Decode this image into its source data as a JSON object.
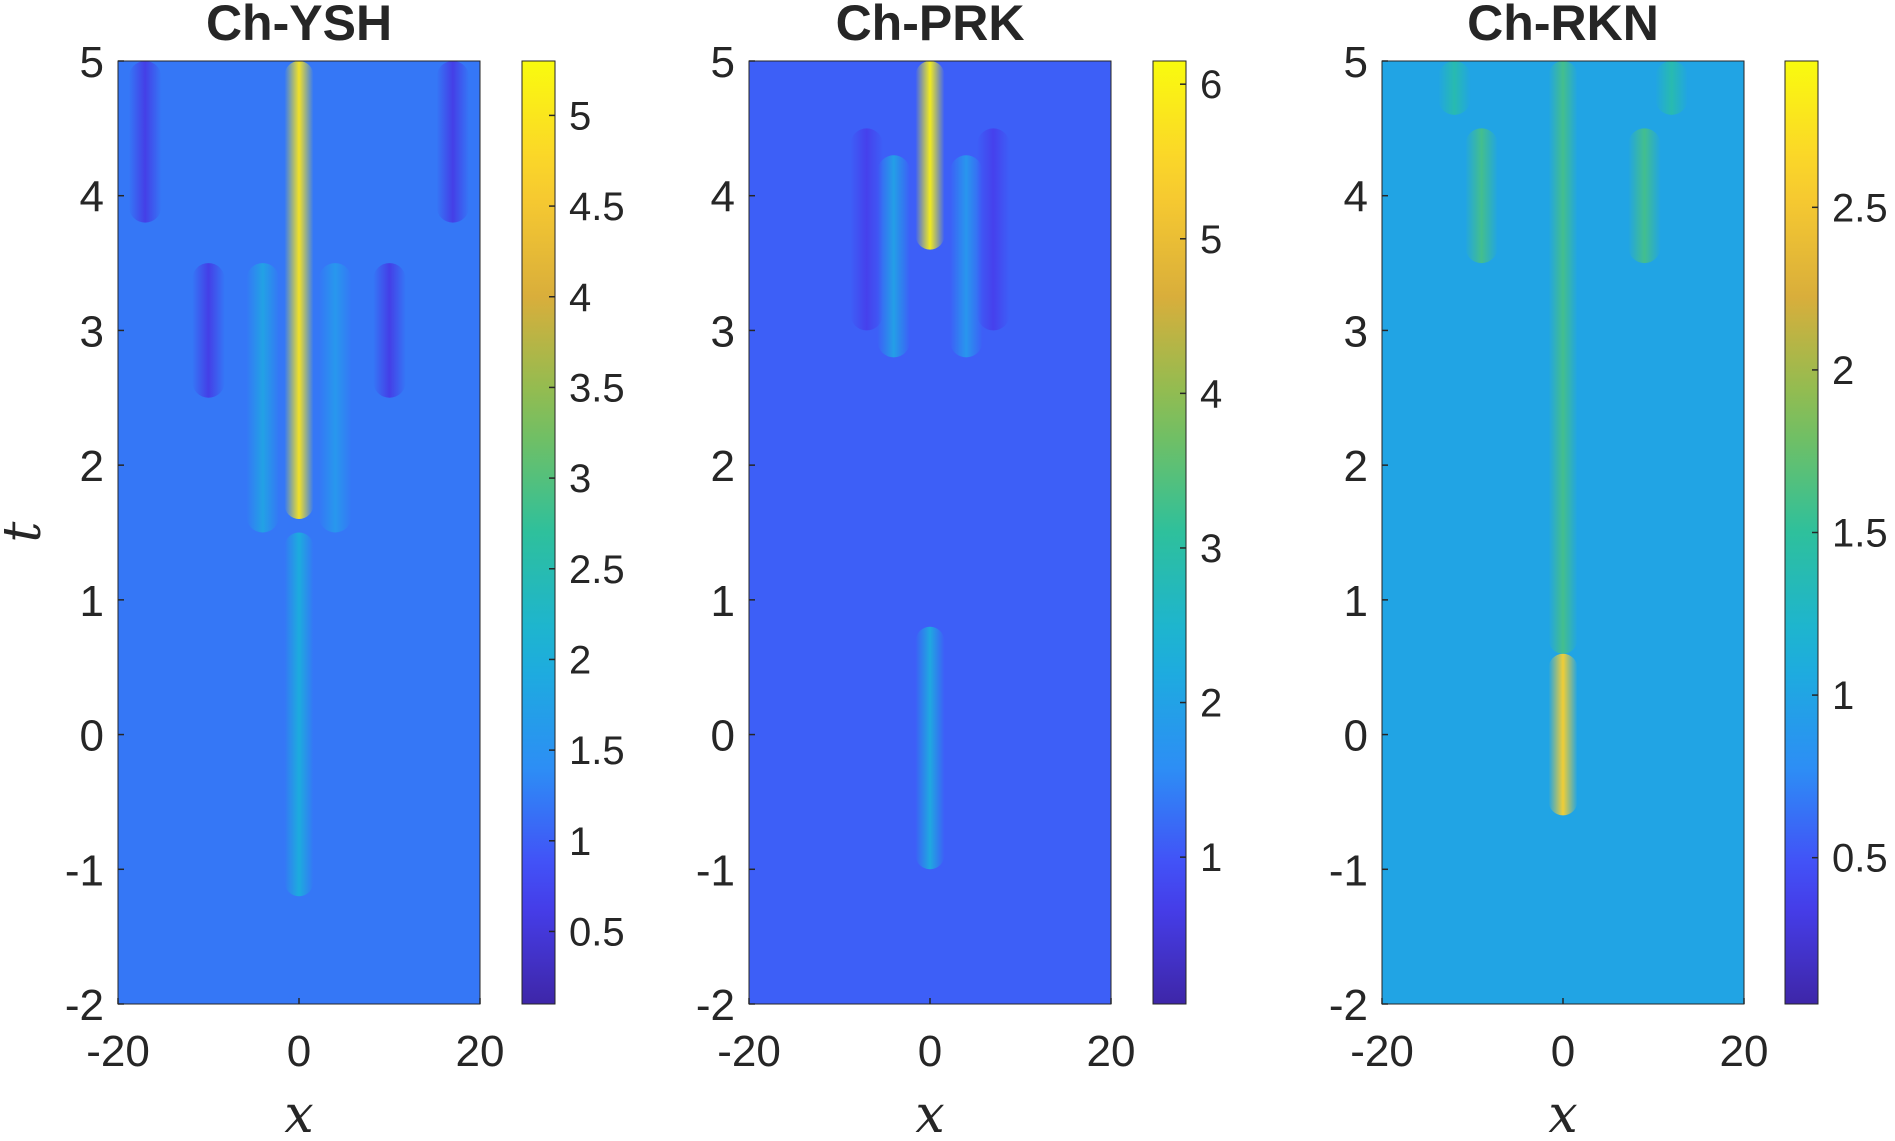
{
  "colormap": [
    "#3e26a8",
    "#4743f8",
    "#2d8ef5",
    "#1ab2da",
    "#2ec09c",
    "#80bf57",
    "#d9ae3b",
    "#fcce2e",
    "#f9fb0e"
  ],
  "shared": {
    "xlabel": "x",
    "ylabel": "t",
    "xlim": [
      -20,
      20
    ],
    "ylim": [
      -2,
      5
    ],
    "xticks": [
      "-20",
      "0",
      "20"
    ],
    "yticks": [
      "-2",
      "-1",
      "0",
      "1",
      "2",
      "3",
      "4",
      "5"
    ]
  },
  "chart_data": [
    {
      "type": "heatmap",
      "title": "Ch-YSH",
      "x_range": [
        -20,
        20
      ],
      "t_range": [
        -2,
        5
      ],
      "clim": [
        0.1,
        5.3
      ],
      "cb_ticks": [
        0.5,
        1,
        1.5,
        2,
        2.5,
        3,
        3.5,
        4,
        4.5,
        5
      ],
      "cb_tick_labels": [
        "0.5",
        "1",
        "1.5",
        "2",
        "2.5",
        "3",
        "3.5",
        "4",
        "4.5",
        "5"
      ],
      "background_value": 1.2,
      "features": [
        {
          "x": 0,
          "t_from": -1.2,
          "t_to": 1.5,
          "peak": 2.0
        },
        {
          "x": 0,
          "t_from": 1.6,
          "t_to": 5.0,
          "peak": 5.0
        },
        {
          "x": -4,
          "t_from": 1.5,
          "t_to": 3.5,
          "peak": 1.8
        },
        {
          "x": 4,
          "t_from": 1.5,
          "t_to": 3.5,
          "peak": 1.6
        },
        {
          "x": -10,
          "t_from": 2.5,
          "t_to": 3.5,
          "peak": 0.6
        },
        {
          "x": 10,
          "t_from": 2.5,
          "t_to": 3.5,
          "peak": 0.6
        },
        {
          "x": -17,
          "t_from": 3.8,
          "t_to": 5.0,
          "peak": 0.6
        },
        {
          "x": 17,
          "t_from": 3.8,
          "t_to": 5.0,
          "peak": 0.6
        }
      ]
    },
    {
      "type": "heatmap",
      "title": "Ch-PRK",
      "x_range": [
        -20,
        20
      ],
      "t_range": [
        -2,
        5
      ],
      "clim": [
        0.05,
        6.15
      ],
      "cb_ticks": [
        1,
        2,
        3,
        4,
        5,
        6
      ],
      "cb_tick_labels": [
        "1",
        "2",
        "3",
        "4",
        "5",
        "6"
      ],
      "background_value": 1.1,
      "features": [
        {
          "x": 0,
          "t_from": -1.0,
          "t_to": 0.8,
          "peak": 2.2
        },
        {
          "x": 0,
          "t_from": 3.6,
          "t_to": 5.0,
          "peak": 6.0
        },
        {
          "x": -4,
          "t_from": 2.8,
          "t_to": 4.3,
          "peak": 2.0
        },
        {
          "x": 4,
          "t_from": 2.8,
          "t_to": 4.3,
          "peak": 1.8
        },
        {
          "x": -7,
          "t_from": 3.0,
          "t_to": 4.5,
          "peak": 0.7
        },
        {
          "x": 7,
          "t_from": 3.0,
          "t_to": 4.5,
          "peak": 0.7
        }
      ]
    },
    {
      "type": "heatmap",
      "title": "Ch-RKN",
      "x_range": [
        -20,
        20
      ],
      "t_range": [
        -2,
        5
      ],
      "clim": [
        0.05,
        2.95
      ],
      "cb_ticks": [
        0.5,
        1,
        1.5,
        2,
        2.5
      ],
      "cb_tick_labels": [
        "0.5",
        "1",
        "1.5",
        "2",
        "2.5"
      ],
      "background_value": 1.0,
      "features": [
        {
          "x": 0,
          "t_from": -0.6,
          "t_to": 0.6,
          "peak": 2.6
        },
        {
          "x": 0,
          "t_from": 0.6,
          "t_to": 5.0,
          "peak": 1.6
        },
        {
          "x": -9,
          "t_from": 3.5,
          "t_to": 4.5,
          "peak": 1.6
        },
        {
          "x": 9,
          "t_from": 3.5,
          "t_to": 4.5,
          "peak": 1.6
        },
        {
          "x": -12,
          "t_from": 4.6,
          "t_to": 5.0,
          "peak": 1.4
        },
        {
          "x": 12,
          "t_from": 4.6,
          "t_to": 5.0,
          "peak": 1.4
        }
      ]
    }
  ]
}
